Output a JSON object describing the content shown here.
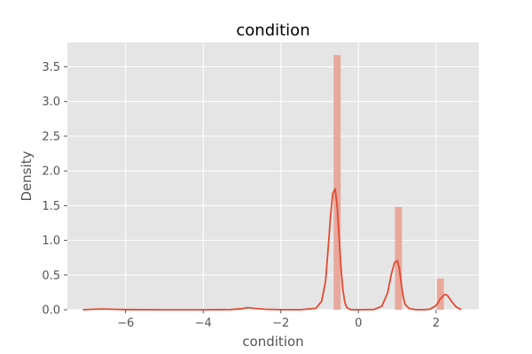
{
  "chart_data": {
    "type": "bar",
    "title": "condition",
    "xlabel": "condition",
    "ylabel": "Density",
    "xlim": [
      -7.5,
      3.1
    ],
    "ylim": [
      0,
      3.85
    ],
    "xticks": [
      -6,
      -4,
      -2,
      0,
      2
    ],
    "xtick_labels": [
      "−6",
      "−4",
      "−2",
      "0",
      "2"
    ],
    "yticks": [
      0.0,
      0.5,
      1.0,
      1.5,
      2.0,
      2.5,
      3.0,
      3.5
    ],
    "ytick_labels": [
      "0.0",
      "0.5",
      "1.0",
      "1.5",
      "2.0",
      "2.5",
      "3.0",
      "3.5"
    ],
    "grid": true,
    "histogram": {
      "bins": [
        {
          "x0": -0.64,
          "x1": -0.46,
          "density": 3.67
        },
        {
          "x0": 0.94,
          "x1": 1.12,
          "density": 1.48
        },
        {
          "x0": 2.02,
          "x1": 2.2,
          "density": 0.45
        }
      ]
    },
    "kde": {
      "x": [
        -7.1,
        -6.8,
        -6.6,
        -6.4,
        -6.0,
        -5.0,
        -4.0,
        -3.3,
        -3.0,
        -2.85,
        -2.7,
        -2.4,
        -2.0,
        -1.5,
        -1.1,
        -0.95,
        -0.85,
        -0.78,
        -0.72,
        -0.66,
        -0.6,
        -0.55,
        -0.5,
        -0.45,
        -0.4,
        -0.35,
        -0.3,
        -0.2,
        0.0,
        0.4,
        0.6,
        0.75,
        0.85,
        0.93,
        1.0,
        1.05,
        1.1,
        1.15,
        1.2,
        1.3,
        1.45,
        1.7,
        1.85,
        2.0,
        2.1,
        2.2,
        2.25,
        2.3,
        2.4,
        2.5,
        2.6,
        2.65
      ],
      "y": [
        0.0,
        0.008,
        0.012,
        0.008,
        0.002,
        0.0,
        0.0,
        0.003,
        0.015,
        0.03,
        0.02,
        0.006,
        0.001,
        0.0,
        0.02,
        0.12,
        0.4,
        0.9,
        1.35,
        1.68,
        1.74,
        1.5,
        1.05,
        0.6,
        0.28,
        0.1,
        0.03,
        0.003,
        0.0,
        0.004,
        0.05,
        0.24,
        0.52,
        0.68,
        0.71,
        0.6,
        0.38,
        0.2,
        0.08,
        0.02,
        0.002,
        0.0,
        0.01,
        0.06,
        0.15,
        0.21,
        0.22,
        0.2,
        0.12,
        0.05,
        0.015,
        0.005
      ]
    },
    "colors": {
      "plot_background": "#e5e5e5",
      "grid": "#ffffff",
      "bar_fill": "#e8a89b",
      "line": "#e24a33",
      "tick": "#555555"
    }
  }
}
